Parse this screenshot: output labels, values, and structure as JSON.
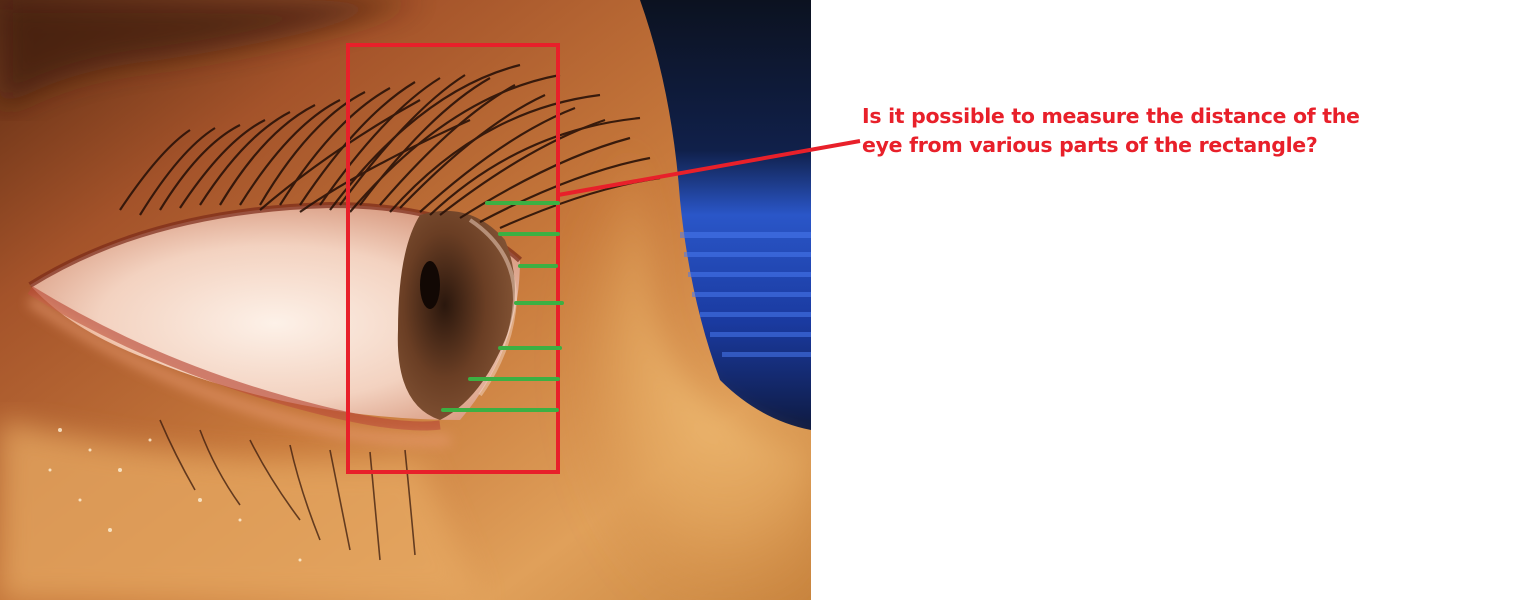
{
  "annotation": {
    "question_line_1": "Is it possible to measure the distance of the",
    "question_line_2": "eye from various parts of the rectangle?"
  },
  "colors": {
    "annotation_red": "#e8202a",
    "measure_green": "#3cb043",
    "background": "#ffffff"
  },
  "photo": {
    "subject": "eye-side-view-closeup"
  }
}
